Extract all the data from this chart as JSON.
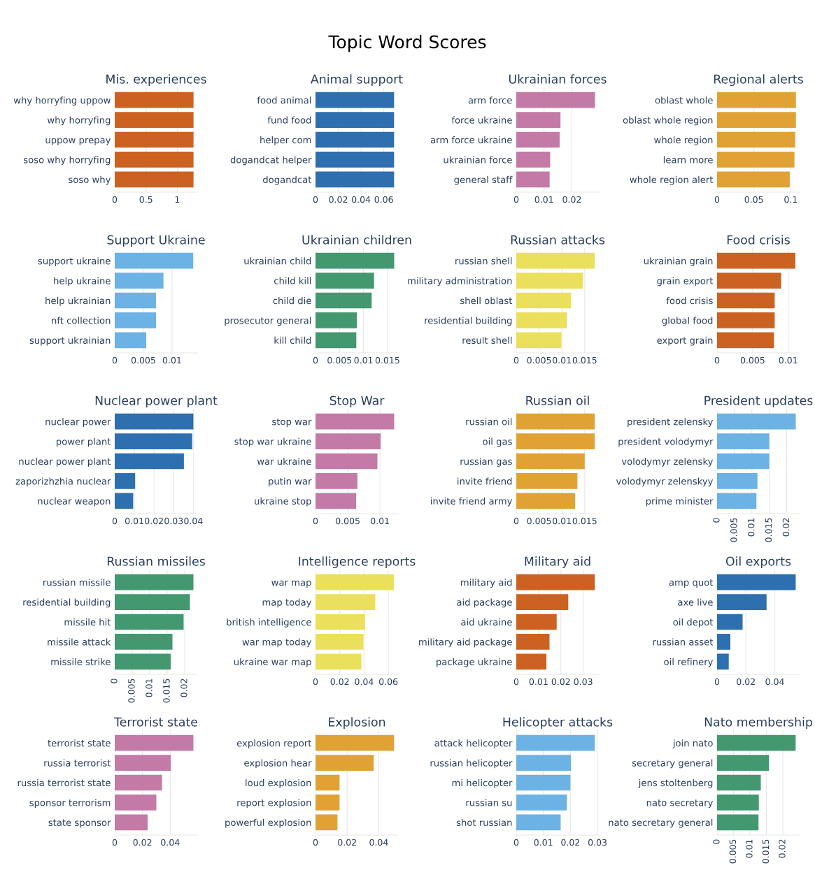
{
  "chart_data": [
    {
      "type": "bar",
      "orientation": "horizontal",
      "annotations": [
        "Topic Word Scores"
      ],
      "title": "Mis. experiences",
      "categories": [
        "why horryfing uppow",
        "why horryfing",
        "uppow prepay",
        "soso why horryfing",
        "soso why"
      ],
      "values": [
        1.26,
        1.26,
        1.26,
        1.26,
        1.26
      ],
      "color": "#cc6222",
      "xlim": [
        0,
        1.32
      ],
      "xticks": [
        0,
        0.5,
        1
      ],
      "grid": "x"
    },
    {
      "type": "bar",
      "orientation": "horizontal",
      "title": "Animal support",
      "categories": [
        "food animal",
        "fund food",
        "helper com",
        "dogandcat helper",
        "dogandcat"
      ],
      "values": [
        0.069,
        0.069,
        0.069,
        0.069,
        0.069
      ],
      "color": "#2d6faf",
      "xlim": [
        0,
        0.0725
      ],
      "xticks": [
        0,
        0.02,
        0.04,
        0.06
      ],
      "grid": "x"
    },
    {
      "type": "bar",
      "orientation": "horizontal",
      "title": "Ukrainian forces",
      "categories": [
        "arm force",
        "force ukraine",
        "arm force ukraine",
        "ukrainian force",
        "general staff"
      ],
      "values": [
        0.0283,
        0.0159,
        0.0156,
        0.0122,
        0.012
      ],
      "color": "#c37aa6",
      "xlim": [
        0,
        0.0297
      ],
      "xticks": [
        0,
        0.01,
        0.02
      ],
      "grid": "x"
    },
    {
      "type": "bar",
      "orientation": "horizontal",
      "title": "Regional alerts",
      "categories": [
        "oblast whole",
        "oblast whole region",
        "whole region",
        "learn more",
        "whole region alert"
      ],
      "values": [
        0.107,
        0.107,
        0.106,
        0.105,
        0.0986
      ],
      "color": "#e0a235",
      "xlim": [
        0,
        0.112
      ],
      "xticks": [
        0,
        0.05,
        0.1
      ],
      "grid": "x"
    },
    {
      "type": "bar",
      "orientation": "horizontal",
      "title": "Support Ukraine",
      "categories": [
        "support ukraine",
        "help ukraine",
        "help ukrainian",
        "nft collection",
        "support ukrainian"
      ],
      "values": [
        0.0137,
        0.0085,
        0.0072,
        0.0072,
        0.0055
      ],
      "color": "#6cb2e4",
      "xlim": [
        0,
        0.0144
      ],
      "xticks": [
        0,
        0.005,
        0.01
      ],
      "grid": "x"
    },
    {
      "type": "bar",
      "orientation": "horizontal",
      "title": "Ukrainian children",
      "categories": [
        "ukrainian child",
        "child kill",
        "child die",
        "prosecutor general",
        "kill child"
      ],
      "values": [
        0.0164,
        0.0122,
        0.0117,
        0.0086,
        0.0085
      ],
      "color": "#43986f",
      "xlim": [
        0,
        0.0172
      ],
      "xticks": [
        0,
        0.005,
        0.01,
        0.015
      ],
      "grid": "x"
    },
    {
      "type": "bar",
      "orientation": "horizontal",
      "title": "Russian attacks",
      "categories": [
        "russian shell",
        "military administration",
        "shell oblast",
        "residential building",
        "result shell"
      ],
      "values": [
        0.0172,
        0.0146,
        0.012,
        0.0111,
        0.0099
      ],
      "color": "#ebe05c",
      "xlim": [
        0,
        0.0181
      ],
      "xticks": [
        0,
        0.005,
        0.01,
        0.015
      ],
      "grid": "x"
    },
    {
      "type": "bar",
      "orientation": "horizontal",
      "title": "Food crisis",
      "categories": [
        "ukrainian grain",
        "grain export",
        "food crisis",
        "global food",
        "export grain"
      ],
      "values": [
        0.011,
        0.009,
        0.0081,
        0.0081,
        0.008
      ],
      "color": "#cc6222",
      "xlim": [
        0,
        0.0116
      ],
      "xticks": [
        0,
        0.005,
        0.01
      ],
      "grid": "x"
    },
    {
      "type": "bar",
      "orientation": "horizontal",
      "title": "Nuclear power plant",
      "categories": [
        "nuclear power",
        "power plant",
        "nuclear power plant",
        "zaporizhzhia nuclear",
        "nuclear weapon"
      ],
      "values": [
        0.04,
        0.0394,
        0.0352,
        0.0104,
        0.0094
      ],
      "color": "#2d6faf",
      "xlim": [
        0,
        0.042
      ],
      "xticks": [
        0,
        0.01,
        0.02,
        0.03,
        0.04
      ],
      "grid": "x"
    },
    {
      "type": "bar",
      "orientation": "horizontal",
      "title": "Stop War",
      "categories": [
        "stop war",
        "stop war ukraine",
        "war ukraine",
        "putin war",
        "ukraine stop"
      ],
      "values": [
        0.0122,
        0.0101,
        0.0096,
        0.0065,
        0.0063
      ],
      "color": "#c37aa6",
      "xlim": [
        0,
        0.0128
      ],
      "xticks": [
        0,
        0.005,
        0.01
      ],
      "grid": "x"
    },
    {
      "type": "bar",
      "orientation": "horizontal",
      "title": "Russian oil",
      "categories": [
        "russian oil",
        "oil gas",
        "russian gas",
        "invite friend",
        "invite friend army"
      ],
      "values": [
        0.0172,
        0.0172,
        0.015,
        0.0134,
        0.0129
      ],
      "color": "#e0a235",
      "xlim": [
        0,
        0.0181
      ],
      "xticks": [
        0,
        0.005,
        0.01,
        0.015
      ],
      "grid": "x"
    },
    {
      "type": "bar",
      "orientation": "horizontal",
      "title": "President updates",
      "categories": [
        "president zelensky",
        "president volodymyr",
        "volodymyr zelensky",
        "volodymyr zelenskyy",
        "prime minister"
      ],
      "values": [
        0.0226,
        0.015,
        0.015,
        0.0116,
        0.0113
      ],
      "color": "#6cb2e4",
      "xlim": [
        0,
        0.0237
      ],
      "xticks": [
        0,
        0.005,
        0.01,
        0.015,
        0.02
      ],
      "grid": "x"
    },
    {
      "type": "bar",
      "orientation": "horizontal",
      "title": "Russian missiles",
      "categories": [
        "russian missile",
        "residential building",
        "missile hit",
        "missile attack",
        "missile strike"
      ],
      "values": [
        0.0225,
        0.0215,
        0.0197,
        0.0165,
        0.016
      ],
      "color": "#43986f",
      "xlim": [
        0,
        0.0236
      ],
      "xticks": [
        0,
        0.005,
        0.01,
        0.015,
        0.02
      ],
      "grid": "x"
    },
    {
      "type": "bar",
      "orientation": "horizontal",
      "title": "Intelligence reports",
      "categories": [
        "war map",
        "map today",
        "british intelligence",
        "war map today",
        "ukraine war map"
      ],
      "values": [
        0.0647,
        0.0492,
        0.0408,
        0.0395,
        0.0378
      ],
      "color": "#ebe05c",
      "xlim": [
        0,
        0.068
      ],
      "xticks": [
        0,
        0.02,
        0.04,
        0.06
      ],
      "grid": "x"
    },
    {
      "type": "bar",
      "orientation": "horizontal",
      "title": "Military aid",
      "categories": [
        "military aid",
        "aid package",
        "aid ukraine",
        "military aid package",
        "package ukraine"
      ],
      "values": [
        0.0352,
        0.0233,
        0.0181,
        0.0149,
        0.0135
      ],
      "color": "#cc6222",
      "xlim": [
        0,
        0.037
      ],
      "xticks": [
        0,
        0.01,
        0.02,
        0.03
      ],
      "grid": "x"
    },
    {
      "type": "bar",
      "orientation": "horizontal",
      "title": "Oil exports",
      "categories": [
        "amp quot",
        "axe live",
        "oil depot",
        "russian asset",
        "oil refinery"
      ],
      "values": [
        0.0545,
        0.0343,
        0.0177,
        0.0092,
        0.0081
      ],
      "color": "#2d6faf",
      "xlim": [
        0,
        0.0572
      ],
      "xticks": [
        0,
        0.02,
        0.04
      ],
      "grid": "x"
    },
    {
      "type": "bar",
      "orientation": "horizontal",
      "title": "Terrorist state",
      "categories": [
        "terrorist state",
        "russia terrorist",
        "russia terrorist state",
        "sponsor terrorism",
        "state sponsor"
      ],
      "values": [
        0.0567,
        0.0404,
        0.0341,
        0.03,
        0.0237
      ],
      "color": "#c37aa6",
      "xlim": [
        0,
        0.0595
      ],
      "xticks": [
        0,
        0.02,
        0.04
      ],
      "grid": "x"
    },
    {
      "type": "bar",
      "orientation": "horizontal",
      "title": "Explosion",
      "categories": [
        "explosion report",
        "explosion hear",
        "loud explosion",
        "report explosion",
        "powerful explosion"
      ],
      "values": [
        0.0497,
        0.0368,
        0.0152,
        0.0152,
        0.0139
      ],
      "color": "#e0a235",
      "xlim": [
        0,
        0.0522
      ],
      "xticks": [
        0,
        0.02,
        0.04
      ],
      "grid": "x"
    },
    {
      "type": "bar",
      "orientation": "horizontal",
      "title": "Helicopter attacks",
      "categories": [
        "attack helicopter",
        "russian helicopter",
        "mi helicopter",
        "russian su",
        "shot russian"
      ],
      "values": [
        0.029,
        0.0202,
        0.02,
        0.0187,
        0.0164
      ],
      "color": "#6cb2e4",
      "xlim": [
        0,
        0.0305
      ],
      "xticks": [
        0,
        0.01,
        0.02,
        0.03
      ],
      "grid": "x"
    },
    {
      "type": "bar",
      "orientation": "horizontal",
      "title": "Nato membership",
      "categories": [
        "join nato",
        "secretary general",
        "jens stoltenberg",
        "nato secretary",
        "nato secretary general"
      ],
      "values": [
        0.0239,
        0.0158,
        0.0133,
        0.0127,
        0.0126
      ],
      "color": "#43986f",
      "xlim": [
        0,
        0.0251
      ],
      "xticks": [
        0,
        0.005,
        0.01,
        0.015,
        0.02
      ],
      "grid": "x"
    }
  ]
}
